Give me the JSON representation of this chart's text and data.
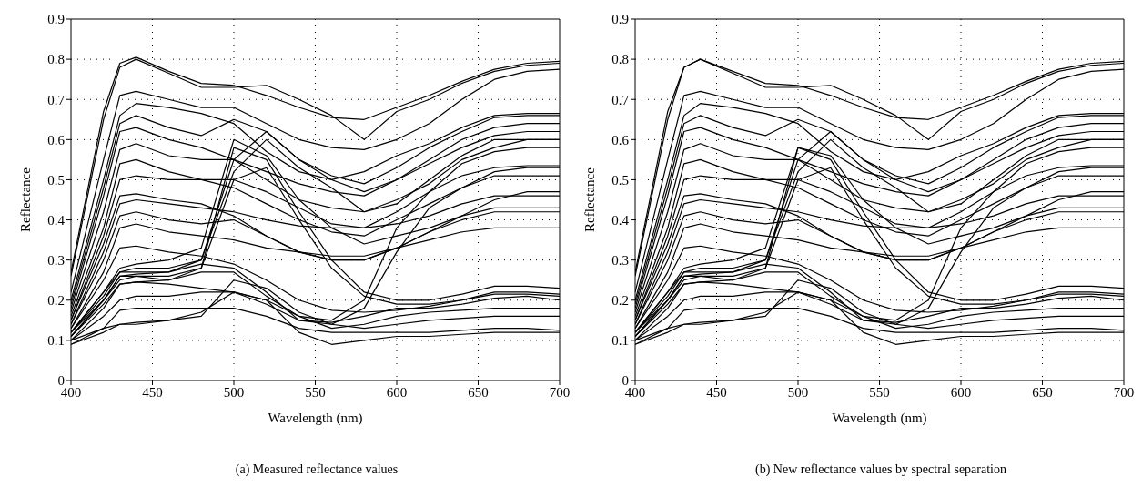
{
  "chart_data": [
    {
      "type": "line",
      "xlabel": "Wavelength (nm)",
      "ylabel": "Reflectance",
      "annotations": [
        "(a)  Measured reflectance values"
      ],
      "xlim": [
        400,
        700
      ],
      "xticks": [
        400,
        450,
        500,
        550,
        600,
        650,
        700
      ],
      "ylim": [
        0,
        0.9
      ],
      "yticks": [
        0,
        0.1,
        0.2,
        0.3,
        0.4,
        0.5,
        0.6,
        0.7,
        0.8,
        0.9
      ],
      "grid": true,
      "marker": "none",
      "line_style": "solid",
      "x": [
        400,
        420,
        430,
        440,
        460,
        480,
        500,
        520,
        540,
        560,
        580,
        600,
        620,
        640,
        660,
        680,
        700
      ],
      "series": [
        {
          "color": "#000000",
          "values": [
            0.27,
            0.67,
            0.79,
            0.805,
            0.77,
            0.74,
            0.735,
            0.71,
            0.68,
            0.655,
            0.65,
            0.68,
            0.71,
            0.745,
            0.775,
            0.79,
            0.795
          ]
        },
        {
          "color": "#000000",
          "values": [
            0.26,
            0.65,
            0.78,
            0.8,
            0.765,
            0.73,
            0.73,
            0.735,
            0.7,
            0.66,
            0.6,
            0.67,
            0.7,
            0.74,
            0.77,
            0.785,
            0.79
          ]
        },
        {
          "color": "#000000",
          "values": [
            0.22,
            0.55,
            0.71,
            0.72,
            0.7,
            0.68,
            0.68,
            0.64,
            0.6,
            0.58,
            0.575,
            0.6,
            0.64,
            0.7,
            0.75,
            0.77,
            0.775
          ]
        },
        {
          "color": "#000000",
          "values": [
            0.2,
            0.5,
            0.66,
            0.69,
            0.68,
            0.665,
            0.64,
            0.57,
            0.52,
            0.5,
            0.52,
            0.56,
            0.59,
            0.63,
            0.66,
            0.665,
            0.665
          ]
        },
        {
          "color": "#000000",
          "values": [
            0.19,
            0.48,
            0.64,
            0.66,
            0.63,
            0.61,
            0.65,
            0.62,
            0.55,
            0.51,
            0.49,
            0.53,
            0.58,
            0.62,
            0.655,
            0.66,
            0.66
          ]
        },
        {
          "color": "#000000",
          "values": [
            0.18,
            0.46,
            0.62,
            0.63,
            0.6,
            0.58,
            0.55,
            0.52,
            0.49,
            0.47,
            0.46,
            0.5,
            0.55,
            0.6,
            0.63,
            0.64,
            0.64
          ]
        },
        {
          "color": "#000000",
          "values": [
            0.17,
            0.42,
            0.575,
            0.59,
            0.56,
            0.55,
            0.55,
            0.5,
            0.45,
            0.43,
            0.42,
            0.44,
            0.5,
            0.56,
            0.6,
            0.6,
            0.6
          ]
        },
        {
          "color": "#000000",
          "values": [
            0.16,
            0.38,
            0.54,
            0.55,
            0.52,
            0.5,
            0.5,
            0.47,
            0.43,
            0.39,
            0.38,
            0.42,
            0.47,
            0.51,
            0.53,
            0.535,
            0.535
          ]
        },
        {
          "color": "#000000",
          "values": [
            0.15,
            0.36,
            0.5,
            0.51,
            0.5,
            0.5,
            0.48,
            0.44,
            0.4,
            0.37,
            0.36,
            0.4,
            0.44,
            0.48,
            0.51,
            0.51,
            0.51
          ]
        },
        {
          "color": "#000000",
          "values": [
            0.15,
            0.34,
            0.46,
            0.465,
            0.45,
            0.44,
            0.41,
            0.36,
            0.32,
            0.3,
            0.3,
            0.33,
            0.37,
            0.41,
            0.45,
            0.47,
            0.47
          ]
        },
        {
          "color": "#000000",
          "values": [
            0.14,
            0.32,
            0.44,
            0.45,
            0.44,
            0.43,
            0.42,
            0.4,
            0.385,
            0.38,
            0.38,
            0.39,
            0.41,
            0.44,
            0.46,
            0.46,
            0.46
          ]
        },
        {
          "color": "#000000",
          "values": [
            0.14,
            0.3,
            0.41,
            0.42,
            0.4,
            0.39,
            0.4,
            0.36,
            0.32,
            0.3,
            0.3,
            0.33,
            0.37,
            0.4,
            0.42,
            0.42,
            0.42
          ]
        },
        {
          "color": "#000000",
          "values": [
            0.13,
            0.27,
            0.38,
            0.39,
            0.37,
            0.36,
            0.35,
            0.33,
            0.32,
            0.31,
            0.31,
            0.33,
            0.35,
            0.37,
            0.38,
            0.38,
            0.38
          ]
        },
        {
          "color": "#000000",
          "values": [
            0.13,
            0.25,
            0.33,
            0.335,
            0.32,
            0.31,
            0.29,
            0.25,
            0.2,
            0.175,
            0.17,
            0.175,
            0.185,
            0.2,
            0.215,
            0.215,
            0.21
          ]
        },
        {
          "color": "#000000",
          "values": [
            0.12,
            0.22,
            0.27,
            0.28,
            0.28,
            0.3,
            0.55,
            0.62,
            0.55,
            0.5,
            0.47,
            0.5,
            0.54,
            0.58,
            0.61,
            0.62,
            0.62
          ]
        },
        {
          "color": "#000000",
          "values": [
            0.11,
            0.2,
            0.26,
            0.265,
            0.27,
            0.3,
            0.52,
            0.6,
            0.53,
            0.48,
            0.42,
            0.45,
            0.49,
            0.55,
            0.58,
            0.6,
            0.6
          ]
        },
        {
          "color": "#000000",
          "values": [
            0.12,
            0.2,
            0.25,
            0.26,
            0.26,
            0.28,
            0.58,
            0.55,
            0.42,
            0.3,
            0.22,
            0.2,
            0.2,
            0.215,
            0.235,
            0.235,
            0.23
          ]
        },
        {
          "color": "#000000",
          "values": [
            0.11,
            0.19,
            0.24,
            0.245,
            0.25,
            0.28,
            0.5,
            0.53,
            0.4,
            0.28,
            0.21,
            0.19,
            0.19,
            0.2,
            0.22,
            0.22,
            0.215
          ]
        },
        {
          "color": "#000000",
          "values": [
            0.12,
            0.21,
            0.27,
            0.27,
            0.27,
            0.29,
            0.28,
            0.22,
            0.15,
            0.14,
            0.18,
            0.32,
            0.43,
            0.48,
            0.52,
            0.53,
            0.53
          ]
        },
        {
          "color": "#000000",
          "values": [
            0.11,
            0.2,
            0.26,
            0.26,
            0.25,
            0.27,
            0.27,
            0.21,
            0.16,
            0.15,
            0.2,
            0.38,
            0.47,
            0.54,
            0.57,
            0.58,
            0.58
          ]
        },
        {
          "color": "#000000",
          "values": [
            0.1,
            0.18,
            0.24,
            0.245,
            0.24,
            0.23,
            0.22,
            0.19,
            0.15,
            0.145,
            0.16,
            0.18,
            0.18,
            0.19,
            0.205,
            0.21,
            0.2
          ]
        },
        {
          "color": "#000000",
          "values": [
            0.1,
            0.16,
            0.2,
            0.21,
            0.21,
            0.22,
            0.22,
            0.2,
            0.16,
            0.13,
            0.14,
            0.16,
            0.17,
            0.175,
            0.18,
            0.18,
            0.18
          ]
        },
        {
          "color": "#000000",
          "values": [
            0.09,
            0.13,
            0.175,
            0.18,
            0.18,
            0.18,
            0.18,
            0.16,
            0.13,
            0.12,
            0.12,
            0.12,
            0.12,
            0.125,
            0.13,
            0.13,
            0.125
          ]
        },
        {
          "color": "#000000",
          "values": [
            0.09,
            0.12,
            0.14,
            0.14,
            0.15,
            0.16,
            0.25,
            0.23,
            0.17,
            0.14,
            0.13,
            0.14,
            0.15,
            0.155,
            0.16,
            0.16,
            0.16
          ]
        },
        {
          "color": "#000000",
          "values": [
            0.1,
            0.13,
            0.14,
            0.145,
            0.15,
            0.17,
            0.22,
            0.2,
            0.12,
            0.09,
            0.1,
            0.11,
            0.11,
            0.115,
            0.12,
            0.12,
            0.12
          ]
        },
        {
          "color": "#000000",
          "values": [
            0.12,
            0.22,
            0.28,
            0.29,
            0.3,
            0.33,
            0.6,
            0.56,
            0.45,
            0.38,
            0.34,
            0.36,
            0.38,
            0.41,
            0.43,
            0.43,
            0.43
          ]
        }
      ]
    },
    {
      "type": "line",
      "xlabel": "Wavelength (nm)",
      "ylabel": "Reflectance",
      "annotations": [
        "(b)  New reflectance values by spectral separation"
      ],
      "xlim": [
        400,
        700
      ],
      "xticks": [
        400,
        450,
        500,
        550,
        600,
        650,
        700
      ],
      "ylim": [
        0,
        0.9
      ],
      "yticks": [
        0,
        0.1,
        0.2,
        0.3,
        0.4,
        0.5,
        0.6,
        0.7,
        0.8,
        0.9
      ],
      "grid": true,
      "marker": "none",
      "line_style": "solid",
      "x": [
        400,
        420,
        430,
        440,
        460,
        480,
        500,
        520,
        540,
        560,
        580,
        600,
        620,
        640,
        660,
        680,
        700
      ],
      "series": [
        {
          "color": "#000000",
          "values": [
            0.27,
            0.67,
            0.78,
            0.8,
            0.77,
            0.74,
            0.735,
            0.71,
            0.68,
            0.655,
            0.65,
            0.68,
            0.71,
            0.745,
            0.775,
            0.79,
            0.795
          ]
        },
        {
          "color": "#000000",
          "values": [
            0.26,
            0.65,
            0.78,
            0.8,
            0.765,
            0.73,
            0.73,
            0.735,
            0.7,
            0.66,
            0.6,
            0.67,
            0.7,
            0.74,
            0.77,
            0.785,
            0.79
          ]
        },
        {
          "color": "#000000",
          "values": [
            0.22,
            0.55,
            0.71,
            0.72,
            0.7,
            0.68,
            0.68,
            0.64,
            0.6,
            0.58,
            0.575,
            0.6,
            0.64,
            0.7,
            0.75,
            0.77,
            0.775
          ]
        },
        {
          "color": "#000000",
          "values": [
            0.2,
            0.5,
            0.66,
            0.69,
            0.68,
            0.665,
            0.64,
            0.57,
            0.52,
            0.5,
            0.52,
            0.56,
            0.59,
            0.63,
            0.66,
            0.665,
            0.665
          ]
        },
        {
          "color": "#000000",
          "values": [
            0.19,
            0.48,
            0.64,
            0.66,
            0.63,
            0.61,
            0.65,
            0.62,
            0.55,
            0.51,
            0.49,
            0.53,
            0.58,
            0.62,
            0.655,
            0.66,
            0.66
          ]
        },
        {
          "color": "#000000",
          "values": [
            0.18,
            0.46,
            0.62,
            0.63,
            0.6,
            0.58,
            0.55,
            0.52,
            0.49,
            0.47,
            0.46,
            0.5,
            0.55,
            0.6,
            0.63,
            0.64,
            0.64
          ]
        },
        {
          "color": "#000000",
          "values": [
            0.17,
            0.42,
            0.575,
            0.59,
            0.56,
            0.55,
            0.55,
            0.5,
            0.45,
            0.43,
            0.42,
            0.44,
            0.5,
            0.56,
            0.6,
            0.6,
            0.6
          ]
        },
        {
          "color": "#000000",
          "values": [
            0.16,
            0.38,
            0.54,
            0.55,
            0.52,
            0.5,
            0.5,
            0.47,
            0.43,
            0.39,
            0.38,
            0.42,
            0.47,
            0.51,
            0.53,
            0.535,
            0.535
          ]
        },
        {
          "color": "#000000",
          "values": [
            0.15,
            0.36,
            0.5,
            0.51,
            0.5,
            0.5,
            0.48,
            0.44,
            0.4,
            0.37,
            0.36,
            0.4,
            0.44,
            0.48,
            0.51,
            0.51,
            0.51
          ]
        },
        {
          "color": "#000000",
          "values": [
            0.15,
            0.34,
            0.46,
            0.465,
            0.45,
            0.44,
            0.41,
            0.36,
            0.32,
            0.3,
            0.3,
            0.33,
            0.37,
            0.41,
            0.45,
            0.47,
            0.47
          ]
        },
        {
          "color": "#000000",
          "values": [
            0.14,
            0.32,
            0.44,
            0.45,
            0.44,
            0.43,
            0.42,
            0.4,
            0.385,
            0.38,
            0.38,
            0.39,
            0.41,
            0.44,
            0.46,
            0.46,
            0.46
          ]
        },
        {
          "color": "#000000",
          "values": [
            0.14,
            0.3,
            0.41,
            0.42,
            0.4,
            0.39,
            0.4,
            0.36,
            0.32,
            0.3,
            0.3,
            0.33,
            0.37,
            0.4,
            0.42,
            0.42,
            0.42
          ]
        },
        {
          "color": "#000000",
          "values": [
            0.13,
            0.27,
            0.38,
            0.39,
            0.37,
            0.36,
            0.35,
            0.33,
            0.32,
            0.31,
            0.31,
            0.33,
            0.35,
            0.37,
            0.38,
            0.38,
            0.38
          ]
        },
        {
          "color": "#000000",
          "values": [
            0.13,
            0.25,
            0.33,
            0.335,
            0.32,
            0.31,
            0.29,
            0.25,
            0.2,
            0.175,
            0.17,
            0.175,
            0.185,
            0.2,
            0.215,
            0.215,
            0.21
          ]
        },
        {
          "color": "#000000",
          "values": [
            0.12,
            0.22,
            0.27,
            0.28,
            0.28,
            0.3,
            0.55,
            0.62,
            0.55,
            0.5,
            0.47,
            0.5,
            0.54,
            0.58,
            0.61,
            0.62,
            0.62
          ]
        },
        {
          "color": "#000000",
          "values": [
            0.11,
            0.2,
            0.26,
            0.265,
            0.27,
            0.3,
            0.52,
            0.6,
            0.53,
            0.48,
            0.42,
            0.45,
            0.49,
            0.55,
            0.58,
            0.6,
            0.6
          ]
        },
        {
          "color": "#000000",
          "values": [
            0.12,
            0.2,
            0.25,
            0.26,
            0.26,
            0.28,
            0.58,
            0.55,
            0.42,
            0.3,
            0.22,
            0.2,
            0.2,
            0.215,
            0.235,
            0.235,
            0.23
          ]
        },
        {
          "color": "#000000",
          "values": [
            0.11,
            0.19,
            0.24,
            0.245,
            0.25,
            0.28,
            0.5,
            0.53,
            0.4,
            0.28,
            0.21,
            0.19,
            0.19,
            0.2,
            0.22,
            0.22,
            0.215
          ]
        },
        {
          "color": "#000000",
          "values": [
            0.12,
            0.21,
            0.27,
            0.27,
            0.27,
            0.29,
            0.28,
            0.22,
            0.15,
            0.14,
            0.18,
            0.32,
            0.43,
            0.48,
            0.52,
            0.53,
            0.53
          ]
        },
        {
          "color": "#000000",
          "values": [
            0.11,
            0.2,
            0.26,
            0.26,
            0.25,
            0.27,
            0.27,
            0.21,
            0.16,
            0.15,
            0.2,
            0.38,
            0.47,
            0.54,
            0.57,
            0.58,
            0.58
          ]
        },
        {
          "color": "#000000",
          "values": [
            0.1,
            0.18,
            0.24,
            0.245,
            0.24,
            0.23,
            0.22,
            0.19,
            0.15,
            0.145,
            0.16,
            0.18,
            0.18,
            0.19,
            0.205,
            0.21,
            0.2
          ]
        },
        {
          "color": "#000000",
          "values": [
            0.1,
            0.16,
            0.2,
            0.21,
            0.21,
            0.22,
            0.22,
            0.2,
            0.16,
            0.13,
            0.14,
            0.16,
            0.17,
            0.175,
            0.18,
            0.18,
            0.18
          ]
        },
        {
          "color": "#000000",
          "values": [
            0.09,
            0.13,
            0.175,
            0.18,
            0.18,
            0.18,
            0.18,
            0.16,
            0.13,
            0.12,
            0.12,
            0.12,
            0.12,
            0.125,
            0.13,
            0.13,
            0.125
          ]
        },
        {
          "color": "#000000",
          "values": [
            0.09,
            0.12,
            0.14,
            0.14,
            0.15,
            0.16,
            0.25,
            0.23,
            0.17,
            0.14,
            0.13,
            0.14,
            0.15,
            0.155,
            0.16,
            0.16,
            0.16
          ]
        },
        {
          "color": "#000000",
          "values": [
            0.1,
            0.13,
            0.14,
            0.145,
            0.15,
            0.17,
            0.22,
            0.2,
            0.12,
            0.09,
            0.1,
            0.11,
            0.11,
            0.115,
            0.12,
            0.12,
            0.12
          ]
        },
        {
          "color": "#000000",
          "values": [
            0.12,
            0.22,
            0.28,
            0.29,
            0.3,
            0.33,
            0.58,
            0.56,
            0.45,
            0.38,
            0.34,
            0.36,
            0.38,
            0.41,
            0.43,
            0.43,
            0.43
          ]
        }
      ]
    }
  ]
}
